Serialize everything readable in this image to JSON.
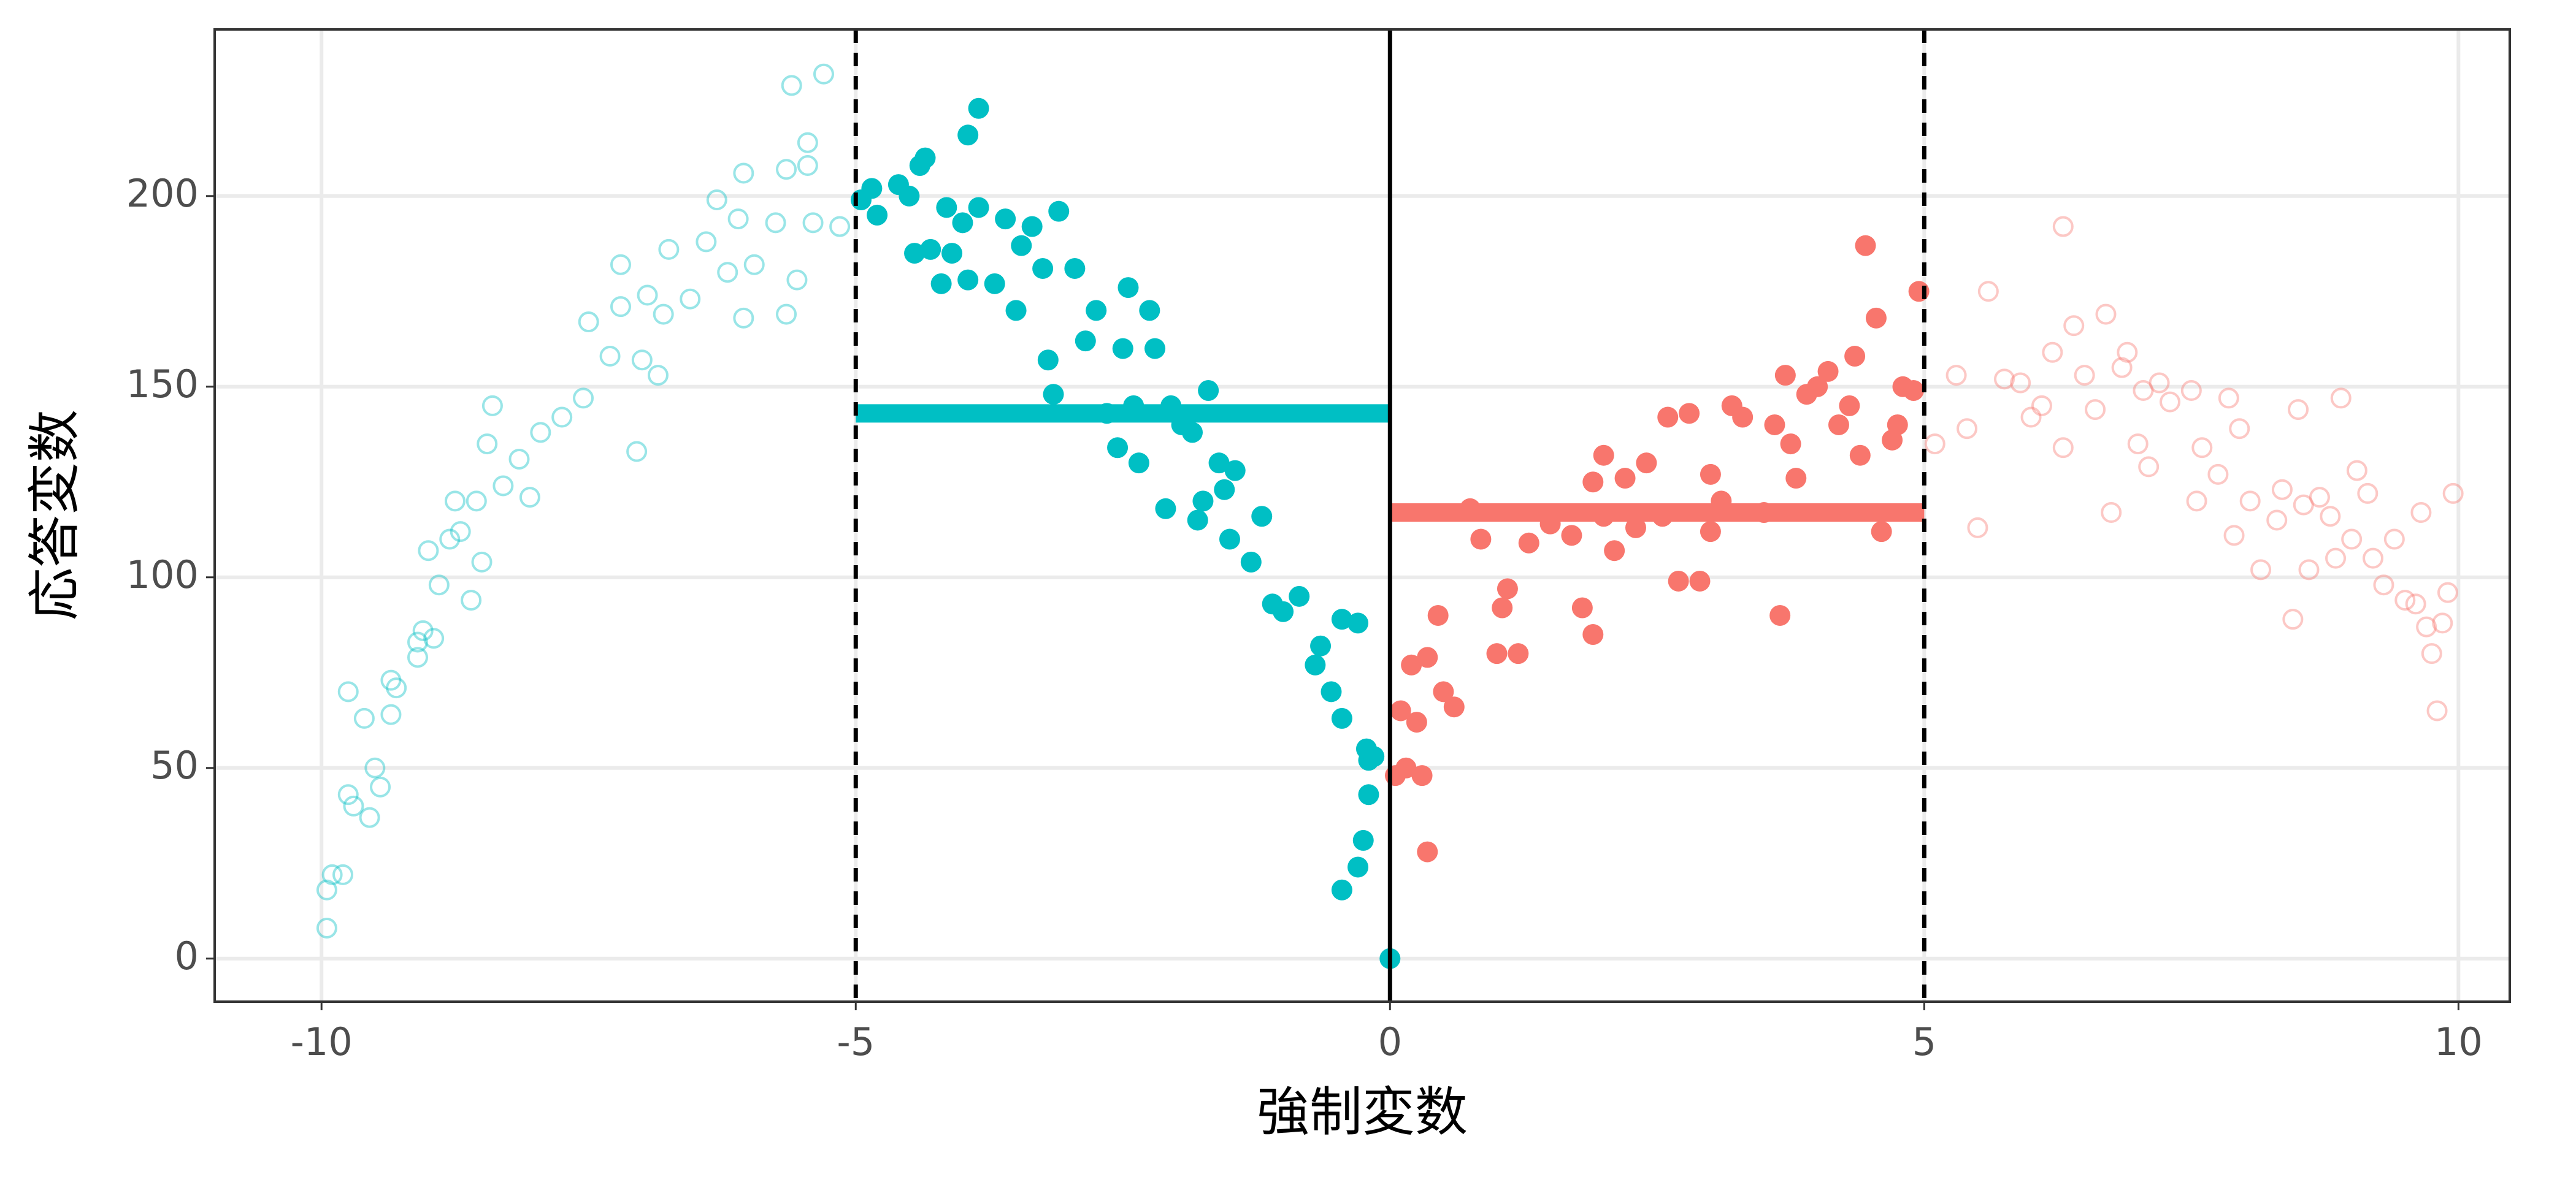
{
  "chart_data": {
    "type": "scatter",
    "x_label": "強制変数",
    "y_label": "応答変数",
    "xlim": [
      -11,
      10.48
    ],
    "ylim": [
      -11.3,
      243.7
    ],
    "xticks": [
      -10,
      -5,
      0,
      5,
      10
    ],
    "yticks": [
      0,
      50,
      100,
      150,
      200
    ],
    "grid": true,
    "series": [
      {
        "color": "#00BFC4",
        "filled": false,
        "opacity": 0.4,
        "x": [
          -9.95,
          -9.95,
          -9.9,
          -9.8,
          -9.75,
          -9.7,
          -9.75,
          -9.6,
          -9.55,
          -9.5,
          -9.45,
          -9.35,
          -9.3,
          -9.35,
          -9.1,
          -9.05,
          -9.0,
          -8.9,
          -8.8,
          -8.7,
          -8.6,
          -8.55,
          -8.45,
          -8.4,
          -8.3,
          -8.15,
          -8.05,
          -7.95,
          -7.75,
          -7.55,
          -7.5,
          -7.3,
          -7.2,
          -7.2,
          -7.05,
          -7.0,
          -6.95,
          -6.85,
          -6.8,
          -6.75,
          -6.55,
          -6.4,
          -6.3,
          -6.2,
          -6.1,
          -6.05,
          -6.05,
          -5.95,
          -5.75,
          -5.65,
          -5.65,
          -5.6,
          -5.55,
          -5.45,
          -5.4,
          -5.45,
          -5.3,
          -5.15,
          -9.1,
          -8.95,
          -8.75,
          -8.5
        ],
        "values": [
          8,
          18,
          22,
          22,
          43,
          40,
          70,
          63,
          37,
          50,
          45,
          73,
          71,
          64,
          79,
          86,
          107,
          98,
          110,
          112,
          94,
          120,
          135,
          145,
          124,
          131,
          121,
          138,
          142,
          147,
          167,
          158,
          171,
          182,
          133,
          157,
          174,
          153,
          169,
          186,
          173,
          188,
          199,
          180,
          194,
          206,
          168,
          182,
          193,
          169,
          207,
          229,
          178,
          214,
          193,
          208,
          232,
          192,
          83,
          84,
          120,
          104
        ]
      },
      {
        "color": "#00BFC4",
        "filled": true,
        "opacity": 1,
        "x": [
          -4.95,
          -4.85,
          -4.8,
          -4.6,
          -4.5,
          -4.45,
          -4.4,
          -4.35,
          -4.3,
          -4.2,
          -4.15,
          -4.1,
          -4.0,
          -3.95,
          -3.95,
          -3.85,
          -3.85,
          -3.7,
          -3.6,
          -3.5,
          -3.45,
          -3.35,
          -3.25,
          -3.2,
          -3.15,
          -3.1,
          -2.95,
          -2.85,
          -2.75,
          -2.65,
          -2.55,
          -2.5,
          -2.45,
          -2.4,
          -2.35,
          -2.25,
          -2.2,
          -2.1,
          -2.05,
          -1.95,
          -1.85,
          -1.8,
          -1.75,
          -1.7,
          -1.6,
          -1.55,
          -1.5,
          -1.45,
          -1.3,
          -1.2,
          -1.1,
          -1.0,
          -0.85,
          -0.7,
          -0.65,
          -0.55,
          -0.45,
          -0.3,
          -0.2,
          -0.45,
          -0.45,
          -0.3,
          -0.25,
          -0.22,
          -0.2,
          -0.15,
          0.0
        ],
        "values": [
          199,
          202,
          195,
          203,
          200,
          185,
          208,
          210,
          186,
          177,
          197,
          185,
          193,
          178,
          216,
          223,
          197,
          177,
          194,
          170,
          187,
          192,
          181,
          157,
          148,
          196,
          181,
          162,
          170,
          143,
          134,
          160,
          176,
          145,
          130,
          170,
          160,
          118,
          145,
          140,
          138,
          115,
          120,
          149,
          130,
          123,
          110,
          128,
          104,
          116,
          93,
          91,
          95,
          77,
          82,
          70,
          89,
          88,
          52,
          63,
          18,
          24,
          31,
          55,
          43,
          53,
          0
        ]
      },
      {
        "color": "#F8766D",
        "filled": true,
        "opacity": 1,
        "x": [
          0.05,
          0.1,
          0.15,
          0.2,
          0.25,
          0.3,
          0.35,
          0.35,
          0.45,
          0.5,
          0.6,
          0.75,
          0.85,
          1.0,
          1.05,
          1.1,
          1.2,
          1.3,
          1.5,
          1.7,
          1.8,
          1.9,
          1.9,
          2.0,
          2.1,
          2.2,
          2.3,
          2.4,
          2.55,
          2.6,
          2.7,
          2.8,
          2.9,
          3.0,
          3.1,
          3.2,
          3.3,
          3.5,
          3.6,
          3.65,
          3.7,
          3.75,
          3.8,
          3.9,
          4.0,
          4.1,
          4.2,
          4.3,
          4.35,
          4.4,
          4.45,
          4.55,
          4.7,
          4.75,
          4.8,
          4.9,
          4.95,
          4.6,
          3.0,
          2.0
        ],
        "values": [
          48,
          65,
          50,
          77,
          62,
          48,
          28,
          79,
          90,
          70,
          66,
          118,
          110,
          80,
          92,
          97,
          80,
          109,
          114,
          111,
          92,
          85,
          125,
          132,
          107,
          126,
          113,
          130,
          116,
          142,
          99,
          143,
          99,
          127,
          120,
          145,
          142,
          117,
          140,
          90,
          153,
          135,
          126,
          148,
          150,
          154,
          140,
          145,
          158,
          132,
          187,
          168,
          136,
          140,
          150,
          149,
          175,
          112,
          112,
          116
        ]
      },
      {
        "color": "#F8766D",
        "filled": false,
        "opacity": 0.4,
        "x": [
          5.1,
          5.3,
          5.4,
          5.5,
          5.6,
          5.75,
          5.9,
          6.0,
          6.1,
          6.2,
          6.3,
          6.3,
          6.4,
          6.5,
          6.6,
          6.7,
          6.75,
          6.85,
          6.9,
          7.0,
          7.05,
          7.1,
          7.2,
          7.3,
          7.5,
          7.55,
          7.6,
          7.75,
          7.85,
          7.9,
          7.95,
          8.05,
          8.15,
          8.3,
          8.35,
          8.45,
          8.5,
          8.55,
          8.6,
          8.7,
          8.8,
          8.85,
          8.9,
          9.0,
          9.05,
          9.15,
          9.2,
          9.3,
          9.4,
          9.5,
          9.6,
          9.65,
          9.7,
          9.75,
          9.8,
          9.85,
          9.9,
          9.95
        ],
        "values": [
          135,
          153,
          139,
          113,
          175,
          152,
          151,
          142,
          145,
          159,
          192,
          134,
          166,
          153,
          144,
          169,
          117,
          155,
          159,
          135,
          149,
          129,
          151,
          146,
          149,
          120,
          134,
          127,
          147,
          111,
          139,
          120,
          102,
          115,
          123,
          89,
          144,
          119,
          102,
          121,
          116,
          105,
          147,
          110,
          128,
          122,
          105,
          98,
          110,
          94,
          93,
          117,
          87,
          80,
          65,
          88,
          96,
          122
        ]
      }
    ],
    "vlines": [
      {
        "x": -5,
        "dashed": true
      },
      {
        "x": 0,
        "dashed": false
      },
      {
        "x": 5,
        "dashed": true
      }
    ],
    "segments": [
      {
        "x": [
          -5,
          0
        ],
        "y": 143,
        "color": "#00BFC4"
      },
      {
        "x": [
          0,
          5
        ],
        "y": 117,
        "color": "#F8766D"
      }
    ]
  }
}
